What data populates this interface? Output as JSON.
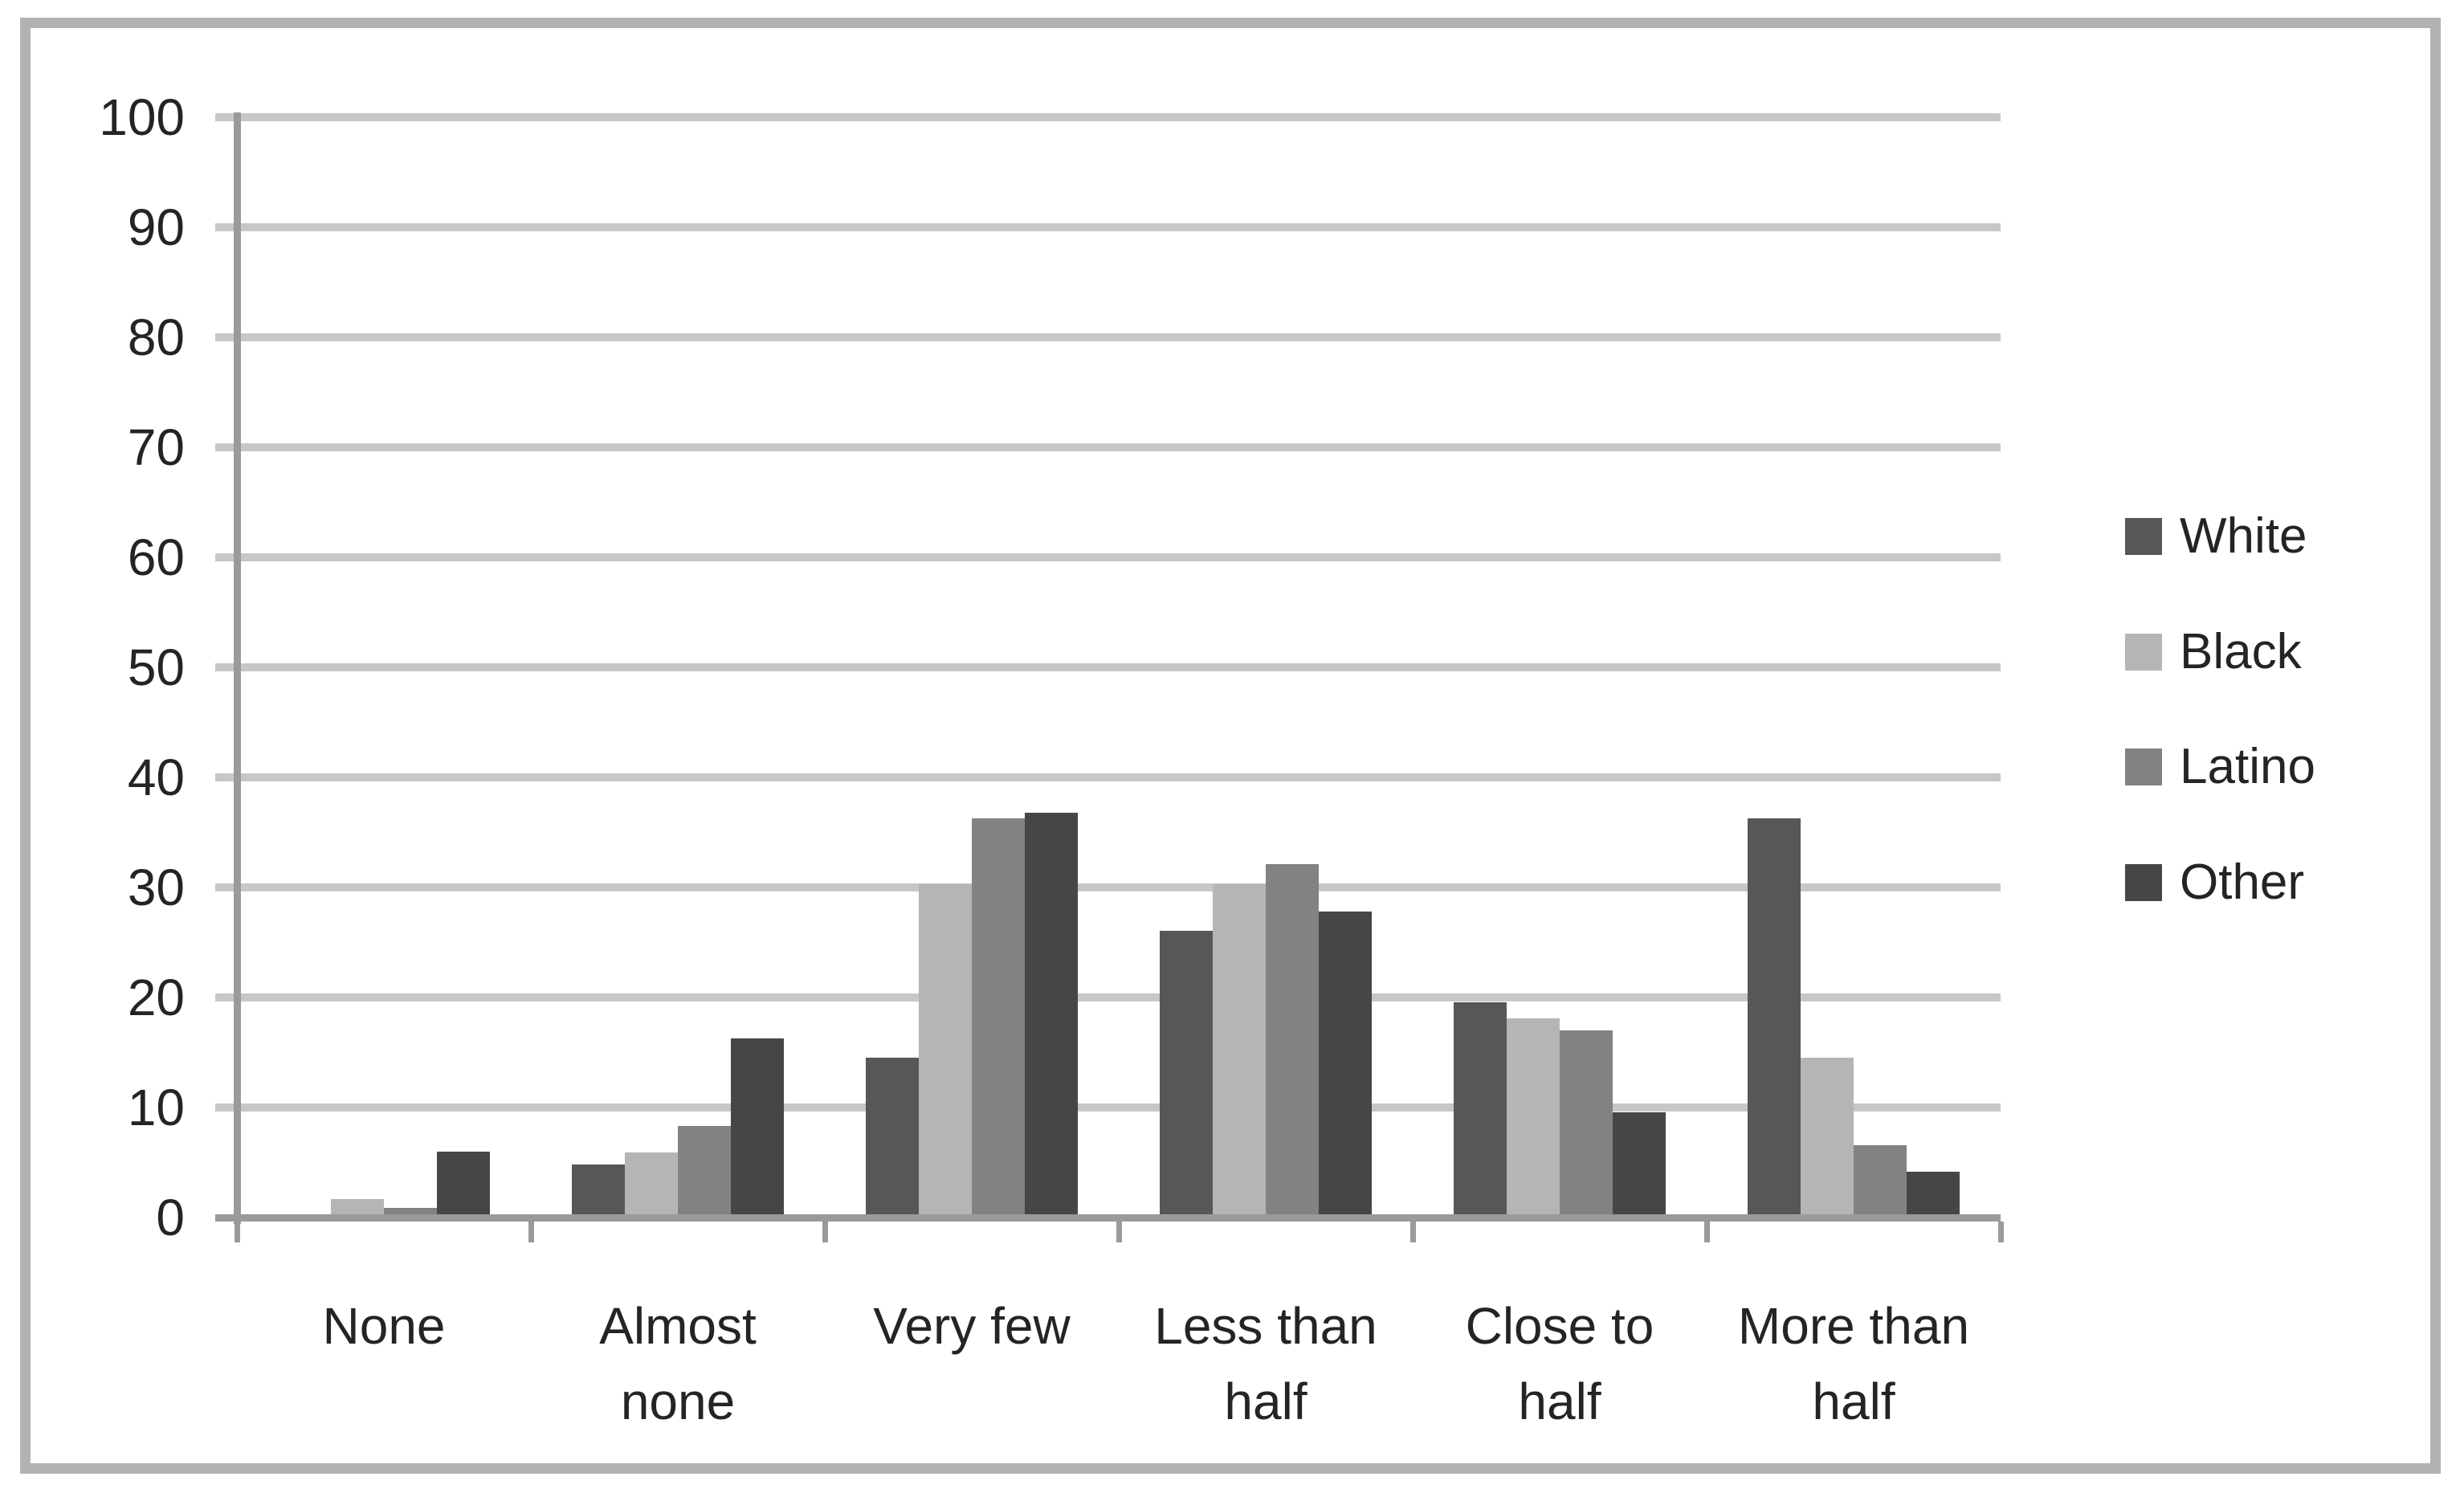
{
  "figure": {
    "background_color": "#ffffff",
    "frame_border_color": "#b2b2b2",
    "title": ""
  },
  "chart_data": {
    "type": "bar",
    "title": "",
    "xlabel": "",
    "ylabel": "",
    "categories": [
      "None",
      "Almost none",
      "Very few",
      "Less than half",
      "Close to half",
      "More than half"
    ],
    "category_label_lines": [
      [
        "None"
      ],
      [
        "Almost",
        "none"
      ],
      [
        "Very few"
      ],
      [
        "Less than",
        "half"
      ],
      [
        "Close to",
        "half"
      ],
      [
        "More than",
        "half"
      ]
    ],
    "series": [
      {
        "name": "White",
        "color": "#575757",
        "values": [
          0,
          4.5,
          14.2,
          25.8,
          19.3,
          36.0
        ]
      },
      {
        "name": "Black",
        "color": "#b5b5b5",
        "values": [
          1.4,
          5.6,
          30.0,
          30.0,
          17.8,
          14.2
        ]
      },
      {
        "name": "Latino",
        "color": "#828282",
        "values": [
          0.6,
          8.0,
          36.0,
          31.8,
          16.7,
          6.3
        ]
      },
      {
        "name": "Other",
        "color": "#464646",
        "values": [
          5.7,
          16.0,
          36.5,
          27.5,
          9.3,
          3.9
        ]
      }
    ],
    "ylim": [
      0,
      100
    ],
    "ytick_step": 10,
    "yticks": [
      0,
      10,
      20,
      30,
      40,
      50,
      60,
      70,
      80,
      90,
      100
    ],
    "ytick_labels": [
      "0",
      "10",
      "20",
      "30",
      "40",
      "50",
      "60",
      "70",
      "80",
      "90",
      "100"
    ],
    "grid": true,
    "gridline_color": "#c7c7c7",
    "axis_color": "#9a9a9a",
    "text_color": "#242424",
    "legend_position": "right",
    "legend_entries": [
      "White",
      "Black",
      "Latino",
      "Other"
    ]
  }
}
